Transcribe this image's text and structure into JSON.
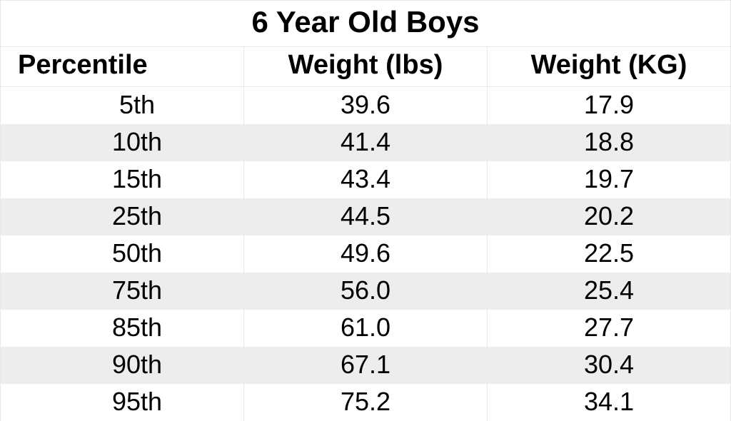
{
  "table": {
    "type": "table",
    "title": "6 Year Old Boys",
    "title_fontsize": 42,
    "header_fontsize": 38,
    "cell_fontsize": 36,
    "title_fontweight": "bold",
    "header_fontweight": "bold",
    "cell_fontweight": "normal",
    "font_family": "Arial",
    "text_color": "#000000",
    "background_color": "#ffffff",
    "stripe_color_odd": "#ffffff",
    "stripe_color_even": "#ededed",
    "border_color": "#e8e8e8",
    "columns": [
      {
        "key": "percentile",
        "label": "Percentile",
        "align": "left",
        "width_pct": 30
      },
      {
        "key": "lbs",
        "label": "Weight (lbs)",
        "align": "center",
        "width_pct": 36
      },
      {
        "key": "kg",
        "label": "Weight (KG)",
        "align": "center",
        "width_pct": 34
      }
    ],
    "rows": [
      {
        "percentile": "5th",
        "lbs": "39.6",
        "kg": "17.9"
      },
      {
        "percentile": "10th",
        "lbs": "41.4",
        "kg": "18.8"
      },
      {
        "percentile": "15th",
        "lbs": "43.4",
        "kg": "19.7"
      },
      {
        "percentile": "25th",
        "lbs": "44.5",
        "kg": "20.2"
      },
      {
        "percentile": "50th",
        "lbs": "49.6",
        "kg": "22.5"
      },
      {
        "percentile": "75th",
        "lbs": "56.0",
        "kg": "25.4"
      },
      {
        "percentile": "85th",
        "lbs": "61.0",
        "kg": "27.7"
      },
      {
        "percentile": "90th",
        "lbs": "67.1",
        "kg": "30.4"
      },
      {
        "percentile": "95th",
        "lbs": "75.2",
        "kg": "34.1"
      }
    ]
  }
}
